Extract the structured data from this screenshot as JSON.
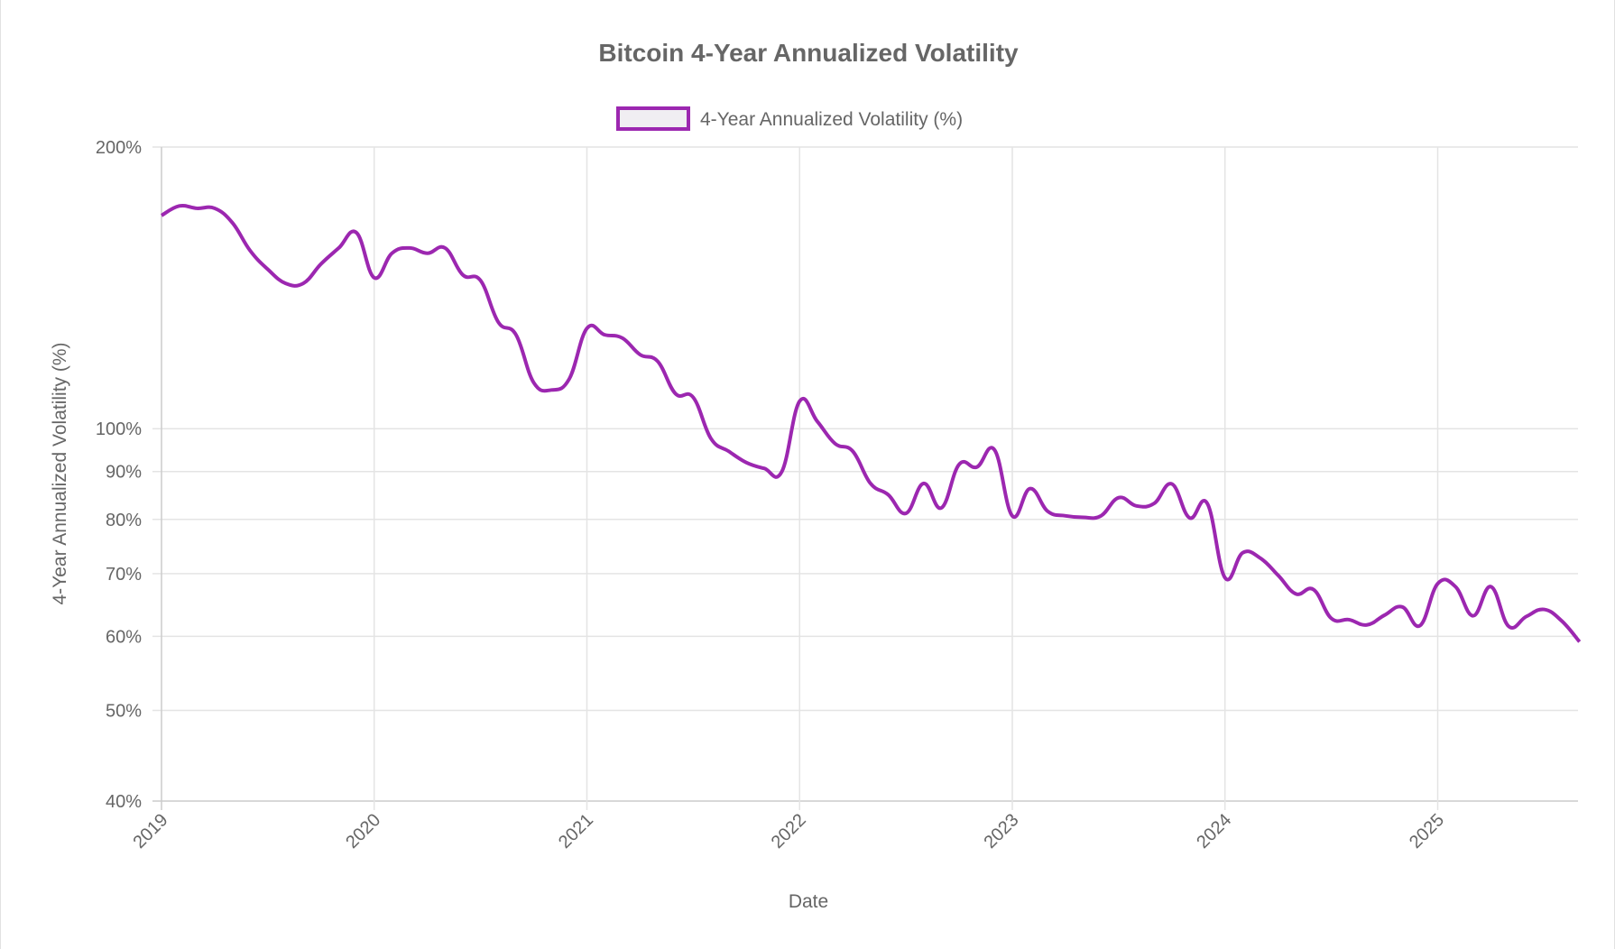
{
  "chart_data": {
    "type": "line",
    "title": "Bitcoin 4-Year Annualized Volatility",
    "xlabel": "Date",
    "ylabel": "4-Year Annualized Volatility (%)",
    "y_scale": "log",
    "ylim": [
      40,
      200
    ],
    "y_ticks": [
      "200%",
      "100%",
      "90%",
      "80%",
      "70%",
      "60%",
      "50%",
      "40%"
    ],
    "y_tick_values": [
      200,
      100,
      90,
      80,
      70,
      60,
      50,
      40
    ],
    "x_ticks": [
      "2019",
      "2020",
      "2021",
      "2022",
      "2023",
      "2024",
      "2025"
    ],
    "xlim": [
      "2019-01",
      "2025-09"
    ],
    "grid": true,
    "legend_placement": "top",
    "series": [
      {
        "name": "4-Year Annualized Volatility (%)",
        "color": "#9c27b0",
        "fill_color": "#f0eef2",
        "x": [
          "2019-01",
          "2019-02",
          "2019-03",
          "2019-04",
          "2019-05",
          "2019-06",
          "2019-07",
          "2019-08",
          "2019-09",
          "2019-10",
          "2019-11",
          "2019-12",
          "2020-01",
          "2020-02",
          "2020-03",
          "2020-04",
          "2020-05",
          "2020-06",
          "2020-07",
          "2020-08",
          "2020-09",
          "2020-10",
          "2020-11",
          "2020-12",
          "2021-01",
          "2021-02",
          "2021-03",
          "2021-04",
          "2021-05",
          "2021-06",
          "2021-07",
          "2021-08",
          "2021-09",
          "2021-10",
          "2021-11",
          "2021-12",
          "2022-01",
          "2022-02",
          "2022-03",
          "2022-04",
          "2022-05",
          "2022-06",
          "2022-07",
          "2022-08",
          "2022-09",
          "2022-10",
          "2022-11",
          "2022-12",
          "2023-01",
          "2023-02",
          "2023-03",
          "2023-04",
          "2023-05",
          "2023-06",
          "2023-07",
          "2023-08",
          "2023-09",
          "2023-10",
          "2023-11",
          "2023-12",
          "2024-01",
          "2024-02",
          "2024-03",
          "2024-04",
          "2024-05",
          "2024-06",
          "2024-07",
          "2024-08",
          "2024-09",
          "2024-10",
          "2024-11",
          "2024-12",
          "2025-01",
          "2025-02",
          "2025-03",
          "2025-04",
          "2025-05",
          "2025-06",
          "2025-07",
          "2025-08",
          "2025-09"
        ],
        "values": [
          169,
          173,
          172,
          172,
          166,
          155,
          148,
          143,
          143,
          150,
          156,
          162,
          145,
          154,
          156,
          154,
          156,
          146,
          144,
          130,
          126,
          112,
          110,
          113,
          128,
          126,
          125,
          120,
          118,
          109,
          108,
          97.6,
          94.6,
          92,
          90.7,
          90,
          107,
          101.8,
          96.4,
          94.6,
          87.4,
          85,
          81.2,
          87.4,
          82.3,
          91.6,
          91,
          94.9,
          80.7,
          86.3,
          81.6,
          80.7,
          80.4,
          80.7,
          84.4,
          82.7,
          83.2,
          87.3,
          80.3,
          83.2,
          69.3,
          73.7,
          72.7,
          69.7,
          66.6,
          67.3,
          62.7,
          62.5,
          61.7,
          63.2,
          64.5,
          61.6,
          68.3,
          67.8,
          63.1,
          67.8,
          61.5,
          63,
          64.1,
          62.3,
          59.2
        ]
      }
    ]
  }
}
